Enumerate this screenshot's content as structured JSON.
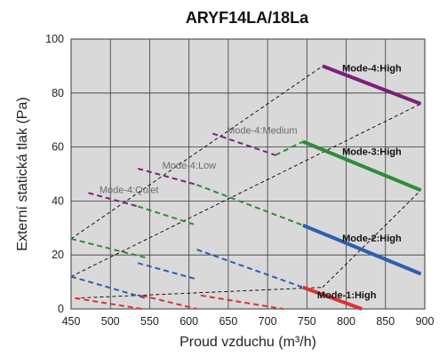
{
  "chart_data": {
    "type": "line",
    "title": "ARYF14LA/18La",
    "xlabel": "Proud vzduchu (m³/h)",
    "ylabel": "Externí statická tlak (Pa)",
    "xlim": [
      450,
      900
    ],
    "ylim": [
      0,
      100
    ],
    "xticks": [
      450,
      500,
      550,
      600,
      650,
      700,
      750,
      800,
      850,
      900
    ],
    "yticks": [
      0,
      20,
      40,
      60,
      80,
      100
    ],
    "grid": true,
    "colors": {
      "plot_bg": "#d9d9d9",
      "grid": "#3a3a3a",
      "high": "#7b1f7b",
      "medium": "#7b1f7b",
      "low": "#7b1f7b",
      "quiet": "#7b1f7b",
      "green": "#2e8b3a",
      "blue": "#2b5fb0",
      "red": "#e03030",
      "boundary": "#000000"
    },
    "boundary_lines": [
      {
        "x": [
          450,
          770
        ],
        "y": [
          26,
          90
        ]
      },
      {
        "x": [
          450,
          895
        ],
        "y": [
          12,
          76
        ]
      },
      {
        "x": [
          455,
          770
        ],
        "y": [
          4,
          8
        ]
      },
      {
        "x": [
          770,
          895
        ],
        "y": [
          8,
          44
        ]
      }
    ],
    "series": [
      {
        "label": "Mode-4:High",
        "color": "high",
        "style": "solid",
        "width": 4,
        "x": [
          770,
          895
        ],
        "y": [
          90,
          76
        ]
      },
      {
        "label": "Mode-3:High",
        "color": "green",
        "style": "solid",
        "width": 4,
        "x": [
          745,
          895
        ],
        "y": [
          62,
          44
        ]
      },
      {
        "label": "Mode-2:High",
        "color": "blue",
        "style": "solid",
        "width": 4,
        "x": [
          745,
          895
        ],
        "y": [
          31,
          13
        ]
      },
      {
        "label": "Mode-1:High",
        "color": "red",
        "style": "solid",
        "width": 4,
        "x": [
          745,
          820
        ],
        "y": [
          8,
          0
        ]
      },
      {
        "label": "Mode-4:Medium",
        "color": "medium",
        "style": "dashed",
        "width": 2,
        "x": [
          630,
          710
        ],
        "y": [
          65,
          57
        ]
      },
      {
        "label": "Mode-4:Low",
        "color": "low",
        "style": "dashed",
        "width": 2,
        "x": [
          535,
          610
        ],
        "y": [
          52,
          46
        ]
      },
      {
        "label": "Mode-4:Quiet",
        "color": "quiet",
        "style": "dashed",
        "width": 2,
        "x": [
          472,
          535
        ],
        "y": [
          43,
          38
        ]
      },
      {
        "label": "",
        "color": "green",
        "style": "dashed",
        "width": 2,
        "x": [
          610,
          745
        ],
        "y": [
          46,
          31
        ]
      },
      {
        "label": "",
        "color": "green",
        "style": "dashed",
        "width": 2,
        "x": [
          535,
          610
        ],
        "y": [
          38,
          31
        ]
      },
      {
        "label": "",
        "color": "green",
        "style": "dashed",
        "width": 2,
        "x": [
          450,
          545
        ],
        "y": [
          26,
          19
        ]
      },
      {
        "label": "",
        "color": "green",
        "style": "dashed",
        "width": 2,
        "x": [
          710,
          745
        ],
        "y": [
          57,
          62
        ]
      },
      {
        "label": "",
        "color": "blue",
        "style": "dashed",
        "width": 2,
        "x": [
          610,
          745
        ],
        "y": [
          22,
          8
        ]
      },
      {
        "label": "",
        "color": "blue",
        "style": "dashed",
        "width": 2,
        "x": [
          535,
          610
        ],
        "y": [
          17,
          11
        ]
      },
      {
        "label": "",
        "color": "blue",
        "style": "dashed",
        "width": 2,
        "x": [
          450,
          545
        ],
        "y": [
          12,
          4
        ]
      },
      {
        "label": "",
        "color": "red",
        "style": "dashed",
        "width": 2,
        "x": [
          615,
          720
        ],
        "y": [
          5,
          0
        ]
      },
      {
        "label": "",
        "color": "red",
        "style": "dashed",
        "width": 2,
        "x": [
          540,
          610
        ],
        "y": [
          5,
          0
        ]
      },
      {
        "label": "",
        "color": "red",
        "style": "dashed",
        "width": 2,
        "x": [
          455,
          540
        ],
        "y": [
          4,
          0
        ]
      }
    ],
    "annotations": [
      {
        "text": "Mode-4:High",
        "x": 795,
        "y": 88,
        "style": "bold"
      },
      {
        "text": "Mode-3:High",
        "x": 795,
        "y": 57,
        "style": "bold"
      },
      {
        "text": "Mode-2:High",
        "x": 795,
        "y": 25,
        "style": "bold"
      },
      {
        "text": "Mode-1:High",
        "x": 763,
        "y": 4,
        "style": "bold"
      },
      {
        "text": "Mode-4:Medium",
        "x": 648,
        "y": 65,
        "style": "light"
      },
      {
        "text": "Mode-4:Low",
        "x": 566,
        "y": 52,
        "style": "light"
      },
      {
        "text": "Mode-4:Quiet",
        "x": 486,
        "y": 43,
        "style": "light"
      }
    ]
  }
}
